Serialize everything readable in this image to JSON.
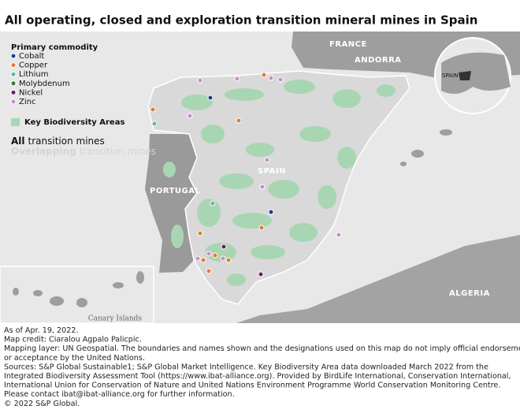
{
  "title": "All operating, closed and exploration transition mineral mines in Spain",
  "legend": {
    "heading": "Primary commodity",
    "commodities": [
      "Cobalt",
      "Copper",
      "Lithium",
      "Molybdenum",
      "Nickel",
      "Zinc"
    ],
    "areas": "Key Biodiversity Areas",
    "all_bold": "All",
    "all_rest": "transition mines",
    "overlap_bold": "Overlapping",
    "overlap_rest": "transition mines"
  },
  "map_labels": {
    "france": "FRANCE",
    "andorra": "ANDORRA",
    "spain": "SPAIN",
    "portugal": "PORTUGAL",
    "algeria": "ALGERIA",
    "globe_spain": "SPAIN",
    "canary": "Canary Islands"
  },
  "footer": [
    "As of Apr. 19, 2022.",
    "Map credit: Ciaralou Agpalo Palicpic.",
    "Mapping layer: UN Geospatial. The boundaries and names shown and the designations used on this map do not imply official endorsement",
    "or acceptance by the United Nations.",
    "Sources: S&P Global Sustainable1; S&P Global Market Intelligence. Key Biodiversity Area data downloaded March 2022 from the",
    "Integrated Biodiversity Assessment Tool (https://www.ibat-alliance.org). Provided by BirdLife International, Conservation International,",
    "International Union for Conservation of Nature and United Nations Environment Programme World Conservation Monitoring Centre.",
    "Please contact ibat@ibat-alliance.org for further information.",
    "© 2022 S&P Global."
  ]
}
